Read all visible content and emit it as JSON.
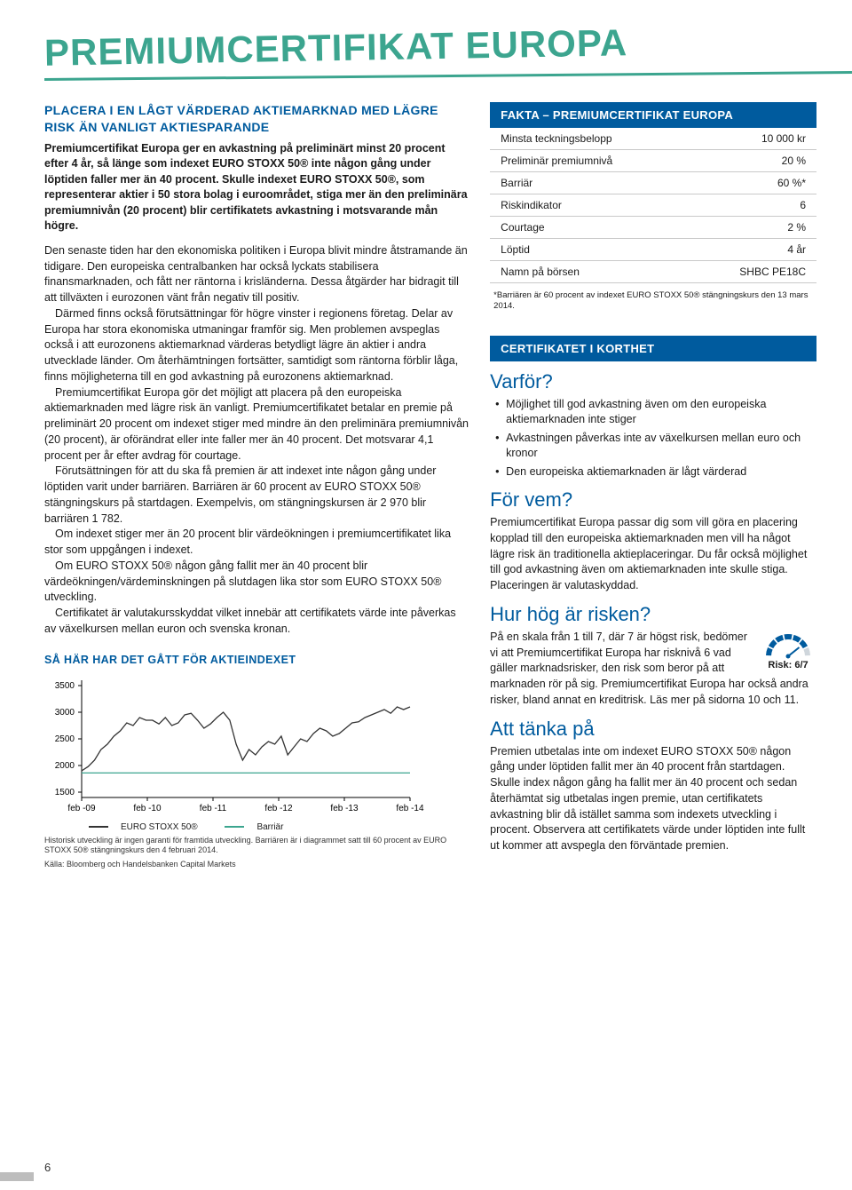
{
  "banner": {
    "title": "PREMIUMCERTIFIKAT EUROPA"
  },
  "lead": {
    "heading": "PLACERA I EN LÅGT VÄRDERAD AKTIEMARKNAD MED LÄGRE RISK ÄN VANLIGT AKTIESPARANDE",
    "sub": "Premiumcertifikat Europa ger en avkastning på preliminärt minst 20 procent efter 4 år, så länge som indexet EURO STOXX 50® inte någon gång under löptiden faller mer än 40 procent. Skulle indexet EURO STOXX 50®, som representerar aktier i 50 stora bolag i euroområdet, stiga mer än den preliminära premiumnivån (20 procent) blir certifikatets avkastning i motsvarande mån högre."
  },
  "body": {
    "p1": "Den senaste tiden har den ekonomiska politiken i Europa blivit mindre åtstramande än tidigare. Den europeiska centralbanken har också lyckats stabilisera finansmarknaden, och fått ner räntorna i krisländerna. Dessa åtgärder har bidragit till att tillväxten i eurozonen vänt från negativ till positiv.",
    "p2": "Därmed finns också förutsättningar för högre vinster i regionens företag. Delar av Europa har stora ekonomiska utmaningar framför sig. Men problemen avspeglas också i att eurozonens aktiemarknad värderas betydligt lägre än aktier i andra utvecklade länder. Om återhämtningen fortsätter, samtidigt som räntorna förblir låga, finns möjligheterna till en god avkastning på eurozonens aktiemarknad.",
    "p3": "Premiumcertifikat Europa gör det möjligt att placera på den europeiska aktiemarknaden med lägre risk än vanligt. Premiumcertifikatet betalar en premie på preliminärt 20 procent om indexet stiger med mindre än den preliminära premiumnivån (20 procent), är oförändrat eller inte faller mer än 40 procent. Det motsvarar 4,1 procent per år efter avdrag för courtage.",
    "p4": "Förutsättningen för att du ska få premien är att indexet inte någon gång under löptiden varit under barriären. Barriären är 60 procent av EURO STOXX 50® stängningskurs på startdagen. Exempelvis, om stängningskursen är 2 970 blir barriären 1 782.",
    "p5": "Om indexet stiger mer än 20 procent blir värdeökningen i premiumcertifikatet lika stor som uppgången i indexet.",
    "p6": "Om EURO STOXX 50® någon gång fallit mer än 40 procent blir värdeökningen/värdeminskningen på slutdagen lika stor som EURO STOXX 50® utveckling.",
    "p7": "Certifikatet är valutakursskyddat vilket innebär att certifikatets värde inte påverkas av växelkursen mellan euron och svenska kronan."
  },
  "chart": {
    "heading": "SÅ HÄR HAR DET GÅTT FÖR AKTIEINDEXET",
    "y_ticks": [
      1500,
      2000,
      2500,
      3000,
      3500
    ],
    "ylim": [
      1400,
      3600
    ],
    "x_labels": [
      "feb -09",
      "feb -10",
      "feb -11",
      "feb -12",
      "feb -13",
      "feb -14"
    ],
    "series": [
      {
        "name": "EURO STOXX 50®",
        "color": "#333333",
        "points": [
          1900,
          1980,
          2100,
          2300,
          2400,
          2550,
          2650,
          2800,
          2750,
          2900,
          2850,
          2850,
          2780,
          2900,
          2750,
          2800,
          2950,
          2980,
          2850,
          2700,
          2780,
          2900,
          3000,
          2850,
          2400,
          2100,
          2300,
          2200,
          2350,
          2450,
          2400,
          2550,
          2200,
          2350,
          2500,
          2450,
          2600,
          2700,
          2650,
          2550,
          2600,
          2700,
          2800,
          2820,
          2900,
          2950,
          3000,
          3050,
          2980,
          3100,
          3050,
          3100
        ]
      },
      {
        "name": "Barriär",
        "color": "#3ca58f",
        "points": [
          1860,
          1860,
          1860,
          1860,
          1860,
          1860,
          1860,
          1860,
          1860,
          1860,
          1860,
          1860,
          1860,
          1860,
          1860,
          1860,
          1860,
          1860,
          1860,
          1860,
          1860,
          1860,
          1860,
          1860,
          1860,
          1860,
          1860,
          1860,
          1860,
          1860,
          1860,
          1860,
          1860,
          1860,
          1860,
          1860,
          1860,
          1860,
          1860,
          1860,
          1860,
          1860,
          1860,
          1860,
          1860,
          1860,
          1860,
          1860,
          1860,
          1860,
          1860,
          1860
        ]
      }
    ],
    "legend": [
      "EURO STOXX 50®",
      "Barriär"
    ],
    "caption1": "Historisk utveckling är ingen garanti för framtida utveckling. Barriären är i diagrammet satt till 60 procent av EURO STOXX 50® stängningskurs den 4 februari 2014.",
    "caption2": "Källa: Bloomberg och Handelsbanken Capital Markets"
  },
  "facts": {
    "header": "FAKTA – PREMIUMCERTIFIKAT EUROPA",
    "rows": [
      [
        "Minsta teckningsbelopp",
        "10 000 kr"
      ],
      [
        "Preliminär premiumnivå",
        "20 %"
      ],
      [
        "Barriär",
        "60 %*"
      ],
      [
        "Riskindikator",
        "6"
      ],
      [
        "Courtage",
        "2 %"
      ],
      [
        "Löptid",
        "4 år"
      ],
      [
        "Namn på börsen",
        "SHBC PE18C"
      ]
    ],
    "footnote": "*Barriären är 60 procent av indexet EURO STOXX 50® stängningskurs den 13 mars 2014."
  },
  "brief": {
    "header": "CERTIFIKATET I KORTHET",
    "q1": "Varför?",
    "b1": [
      "Möjlighet till god avkastning även om den europeiska aktiemarknaden inte stiger",
      "Avkastningen påverkas inte av växelkursen mellan euro och kronor",
      "Den europeiska aktiemarknaden är lågt värderad"
    ],
    "q2": "För vem?",
    "p2": "Premiumcertifikat Europa passar dig som vill göra en placering kopplad till den europeiska aktiemarknaden men vill ha något lägre risk än traditionella aktieplaceringar. Du får också möjlighet till god avkastning även om aktiemarknaden inte skulle stiga. Placeringen är valutaskyddad.",
    "q3": "Hur hög är risken?",
    "p3": "På en skala från 1 till 7, där 7 är högst risk, bedömer vi att Premiumcertifikat Europa har risknivå 6 vad gäller marknadsrisker, den risk som beror på att marknaden rör på sig. Premiumcertifikat Europa har också andra risker, bland annat en kreditrisk. Läs mer på sidorna 10 och 11.",
    "risk_label": "Risk: 6/7",
    "risk_value": 6,
    "q4": "Att tänka på",
    "p4": "Premien utbetalas inte om indexet EURO STOXX 50® någon gång under löptiden fallit mer än 40 procent från startdagen. Skulle index någon gång ha fallit mer än 40 procent och sedan återhämtat sig utbetalas ingen premie, utan certifikatets avkastning blir då istället samma som indexets utveckling i procent. Observera att certifikatets värde under löptiden inte fullt ut kommer att avspegla den förväntade premien."
  },
  "pageNum": "6"
}
